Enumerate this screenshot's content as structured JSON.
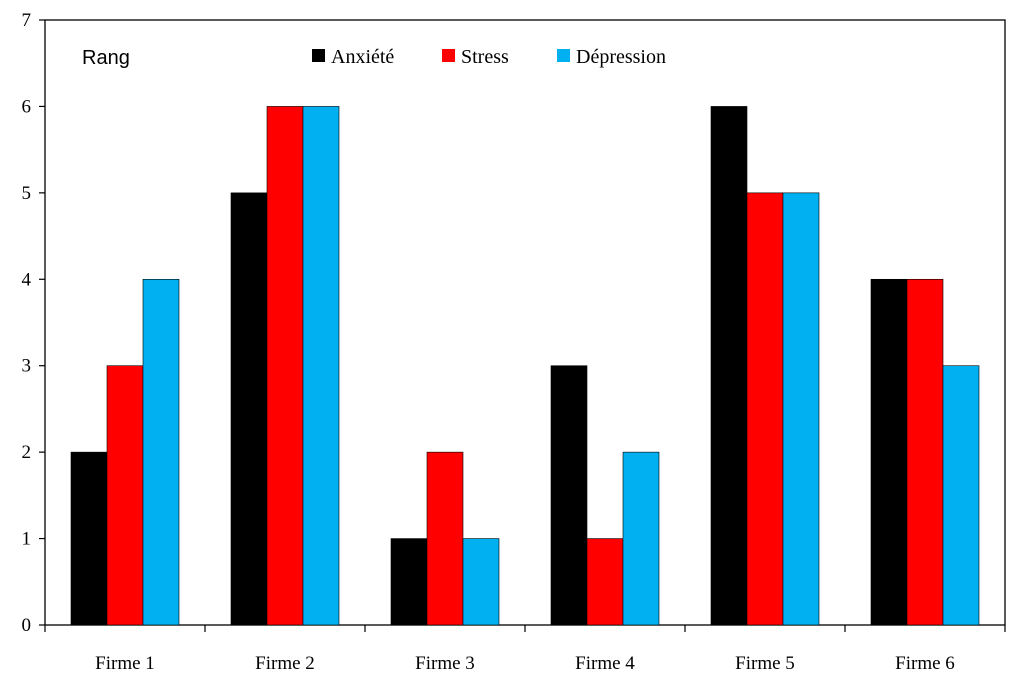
{
  "chart_data": {
    "type": "bar",
    "ylabel": "Rang",
    "xlabel": "",
    "ylim": [
      0,
      7
    ],
    "yticks": [
      "0",
      "1",
      "2",
      "3",
      "4",
      "5",
      "6",
      "7"
    ],
    "categories": [
      "Firme 1",
      "Firme 2",
      "Firme 3",
      "Firme 4",
      "Firme 5",
      "Firme 6"
    ],
    "series": [
      {
        "name": "Anxiété",
        "color": "#000000",
        "values": [
          2,
          5,
          1,
          3,
          6,
          4
        ]
      },
      {
        "name": "Stress",
        "color": "#ff0000",
        "values": [
          3,
          6,
          2,
          1,
          5,
          4
        ]
      },
      {
        "name": "Dépression",
        "color": "#00b0f0",
        "values": [
          4,
          6,
          1,
          2,
          5,
          3
        ]
      }
    ],
    "legend": "top",
    "grid": false
  }
}
